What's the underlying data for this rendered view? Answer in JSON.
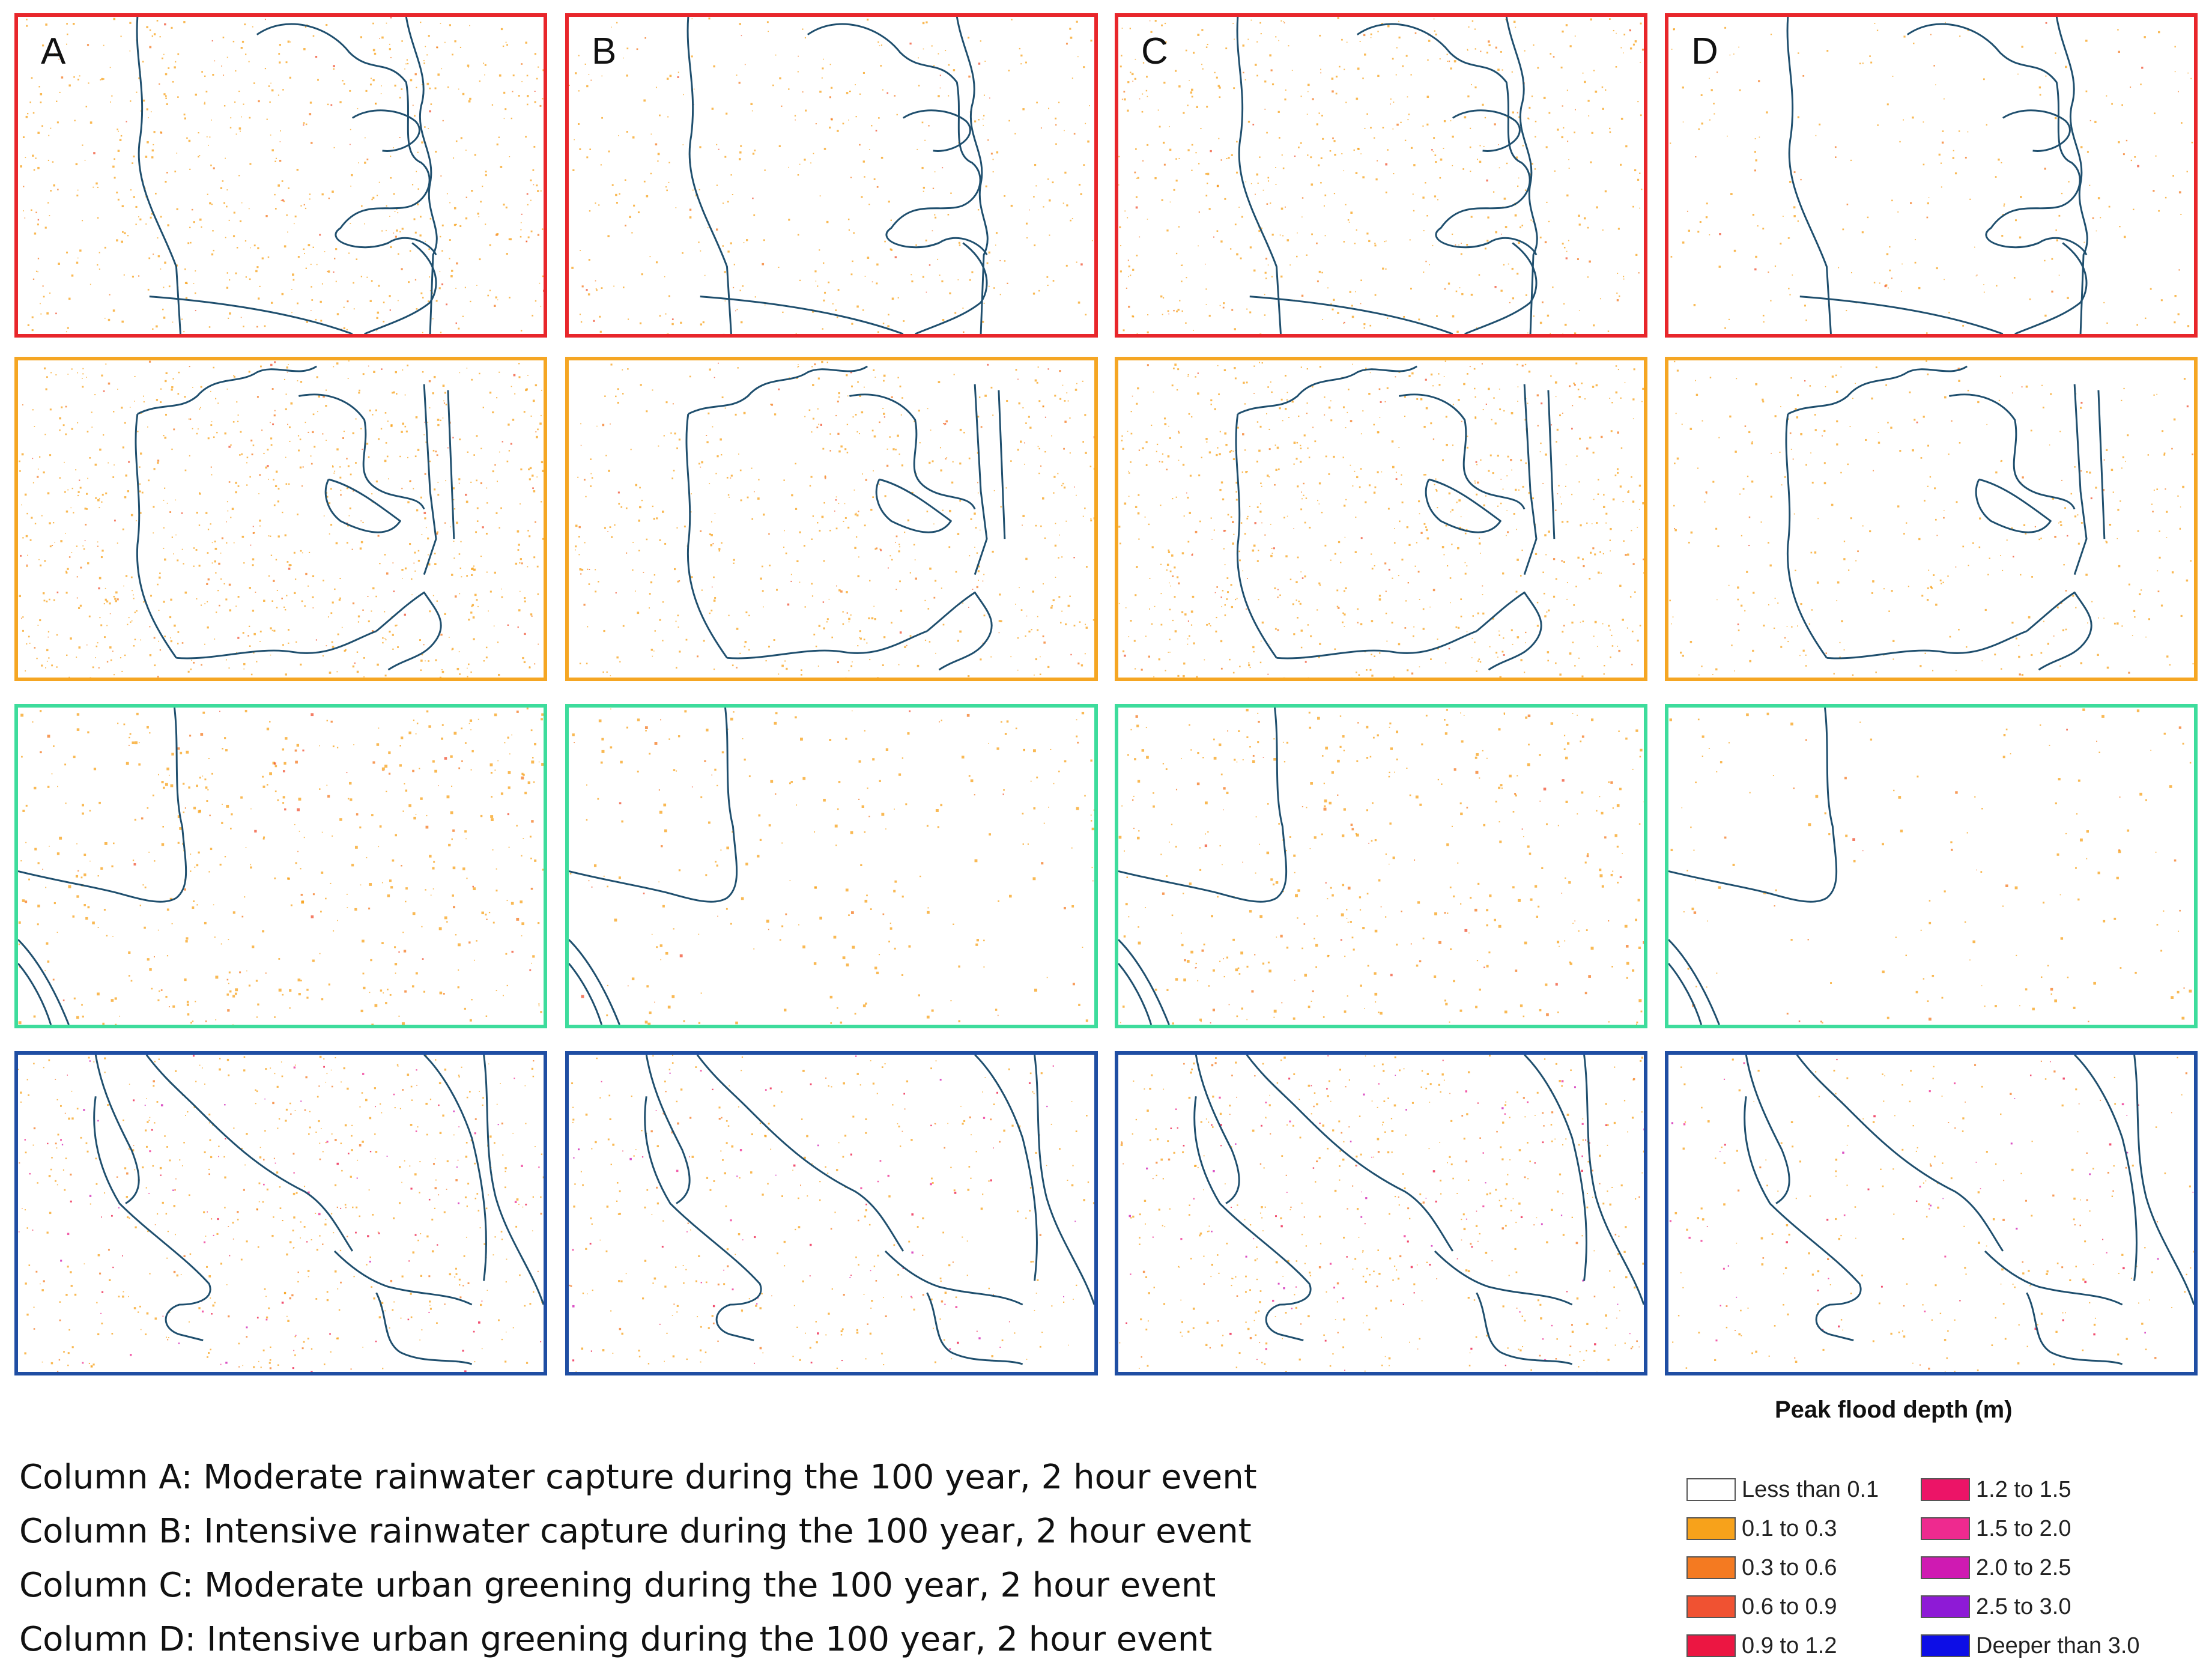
{
  "map": {
    "columns": [
      {
        "letter": "A",
        "caption": "Column A: Moderate rainwater capture during the 100 year, 2 hour event"
      },
      {
        "letter": "B",
        "caption": "Column B: Intensive rainwater capture during the 100 year, 2 hour event"
      },
      {
        "letter": "C",
        "caption": "Column C: Moderate urban greening during the 100 year, 2 hour event"
      },
      {
        "letter": "D",
        "caption": "Column D: Intensive urban greening during the 100 year, 2 hour event"
      }
    ],
    "row_frame_colors": [
      "#e8262b",
      "#f5a623",
      "#3ddc9c",
      "#1f4ea3"
    ],
    "boundary_color": "#1f4f6e",
    "legend": {
      "title": "Peak flood depth (m)",
      "items": [
        {
          "label": "Less than 0.1",
          "color": "#ffffff"
        },
        {
          "label": "0.1 to 0.3",
          "color": "#f7a21b"
        },
        {
          "label": "0.3 to 0.6",
          "color": "#f47a21"
        },
        {
          "label": "0.6 to 0.9",
          "color": "#f05232"
        },
        {
          "label": "0.9 to 1.2",
          "color": "#ec1642"
        },
        {
          "label": "1.2 to 1.5",
          "color": "#ec1467"
        },
        {
          "label": "1.5 to 2.0",
          "color": "#ee2a8f"
        },
        {
          "label": "2.0 to 2.5",
          "color": "#cf1ab2"
        },
        {
          "label": "2.5 to 3.0",
          "color": "#8e1ad6"
        },
        {
          "label": "Deeper than 3.0",
          "color": "#0d0ee6"
        }
      ]
    }
  }
}
